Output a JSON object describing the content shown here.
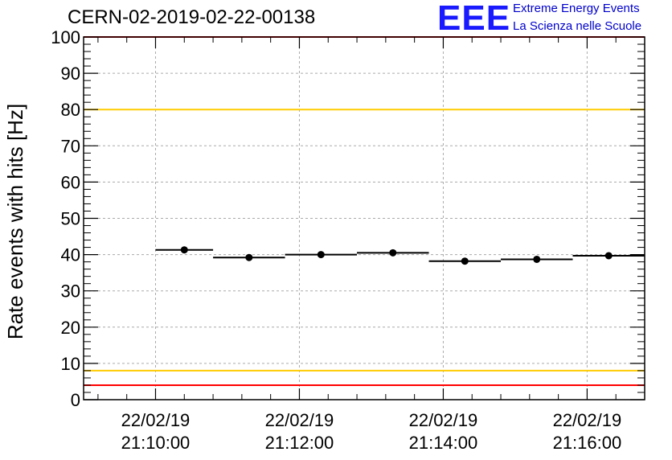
{
  "header": {
    "title": "CERN-02-2019-02-22-00138",
    "logo_text": "EEE",
    "logo_line1": "Extreme Energy Events",
    "logo_line2": "La Scienza nelle Scuole"
  },
  "chart_data": {
    "type": "scatter",
    "title": "CERN-02-2019-02-22-00138",
    "xlabel": "",
    "ylabel": "Rate events with hits [Hz]",
    "ylim": [
      0,
      100
    ],
    "yticks": [
      0,
      10,
      20,
      30,
      40,
      50,
      60,
      70,
      80,
      90,
      100
    ],
    "x_ticks": [
      {
        "date": "22/02/19",
        "time": "21:10:00"
      },
      {
        "date": "22/02/19",
        "time": "21:12:00"
      },
      {
        "date": "22/02/19",
        "time": "21:14:00"
      },
      {
        "date": "22/02/19",
        "time": "21:16:00"
      }
    ],
    "xlim": [
      "22/02/19 21:09:00",
      "22/02/19 21:16:48"
    ],
    "grid": true,
    "points": [
      {
        "x": "22/02/19 21:10:00",
        "x_end": "22/02/19 21:10:48",
        "y": 41.3
      },
      {
        "x": "22/02/19 21:10:48",
        "x_end": "22/02/19 21:11:48",
        "y": 39.2
      },
      {
        "x": "22/02/19 21:11:48",
        "x_end": "22/02/19 21:12:48",
        "y": 40.0
      },
      {
        "x": "22/02/19 21:12:48",
        "x_end": "22/02/19 21:13:48",
        "y": 40.5
      },
      {
        "x": "22/02/19 21:13:48",
        "x_end": "22/02/19 21:14:48",
        "y": 38.2
      },
      {
        "x": "22/02/19 21:14:48",
        "x_end": "22/02/19 21:15:48",
        "y": 38.7
      },
      {
        "x": "22/02/19 21:15:48",
        "x_end": "22/02/19 21:16:48",
        "y": 39.7
      }
    ],
    "reference_lines": [
      {
        "y": 100,
        "color": "#ff0000"
      },
      {
        "y": 80,
        "color": "#ffcc00"
      },
      {
        "y": 8,
        "color": "#ffcc00"
      },
      {
        "y": 4,
        "color": "#ff0000"
      }
    ]
  },
  "colors": {
    "logo": "#1a1aff",
    "logo_text": "#0000cc",
    "grid": "#aaaaaa",
    "markers": "#000000"
  }
}
